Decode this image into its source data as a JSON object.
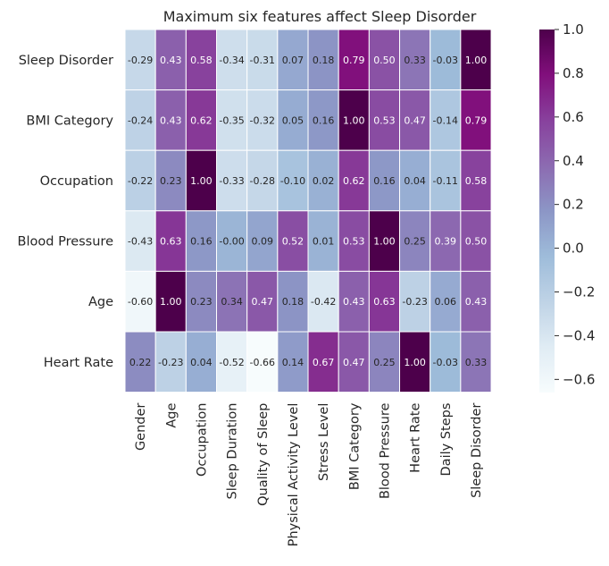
{
  "chart_data": {
    "type": "heatmap",
    "title": "Maximum six features affect Sleep Disorder",
    "xlabel": "",
    "ylabel": "",
    "x_categories": [
      "Gender",
      "Age",
      "Occupation",
      "Sleep Duration",
      "Quality of Sleep",
      "Physical Activity Level",
      "Stress Level",
      "BMI Category",
      "Blood Pressure",
      "Heart Rate",
      "Daily Steps",
      "Sleep Disorder"
    ],
    "y_categories": [
      "Sleep Disorder",
      "BMI Category",
      "Occupation",
      "Blood Pressure",
      "Age",
      "Heart Rate"
    ],
    "values": [
      [
        -0.29,
        0.43,
        0.58,
        -0.34,
        -0.31,
        0.07,
        0.18,
        0.79,
        0.5,
        0.33,
        -0.03,
        1.0
      ],
      [
        -0.24,
        0.43,
        0.62,
        -0.35,
        -0.32,
        0.05,
        0.16,
        1.0,
        0.53,
        0.47,
        -0.14,
        0.79
      ],
      [
        -0.22,
        0.23,
        1.0,
        -0.33,
        -0.28,
        -0.1,
        0.02,
        0.62,
        0.16,
        0.04,
        -0.11,
        0.58
      ],
      [
        -0.43,
        0.63,
        0.16,
        -0.0,
        0.09,
        0.52,
        0.01,
        0.53,
        1.0,
        0.25,
        0.39,
        0.5
      ],
      [
        -0.6,
        1.0,
        0.23,
        0.34,
        0.47,
        0.18,
        -0.42,
        0.43,
        0.63,
        -0.23,
        0.06,
        0.43
      ],
      [
        0.22,
        -0.23,
        0.04,
        -0.52,
        -0.66,
        0.14,
        0.67,
        0.47,
        0.25,
        1.0,
        -0.03,
        0.33
      ]
    ],
    "value_labels": [
      [
        "-0.29",
        "0.43",
        "0.58",
        "-0.34",
        "-0.31",
        "0.07",
        "0.18",
        "0.79",
        "0.50",
        "0.33",
        "-0.03",
        "1.00"
      ],
      [
        "-0.24",
        "0.43",
        "0.62",
        "-0.35",
        "-0.32",
        "0.05",
        "0.16",
        "1.00",
        "0.53",
        "0.47",
        "-0.14",
        "0.79"
      ],
      [
        "-0.22",
        "0.23",
        "1.00",
        "-0.33",
        "-0.28",
        "-0.10",
        "0.02",
        "0.62",
        "0.16",
        "0.04",
        "-0.11",
        "0.58"
      ],
      [
        "-0.43",
        "0.63",
        "0.16",
        "-0.00",
        "0.09",
        "0.52",
        "0.01",
        "0.53",
        "1.00",
        "0.25",
        "0.39",
        "0.50"
      ],
      [
        "-0.60",
        "1.00",
        "0.23",
        "0.34",
        "0.47",
        "0.18",
        "-0.42",
        "0.43",
        "0.63",
        "-0.23",
        "0.06",
        "0.43"
      ],
      [
        "0.22",
        "-0.23",
        "0.04",
        "-0.52",
        "-0.66",
        "0.14",
        "0.67",
        "0.47",
        "0.25",
        "1.00",
        "-0.03",
        "0.33"
      ]
    ],
    "colormap": "BuPu",
    "vmin": -0.66,
    "vmax": 1.0,
    "colorbar": {
      "ticks": [
        1.0,
        0.8,
        0.6,
        0.4,
        0.2,
        0.0,
        -0.2,
        -0.4,
        -0.6
      ],
      "tick_labels": [
        "1.0",
        "0.8",
        "0.6",
        "0.4",
        "0.2",
        "0.0",
        "−0.2",
        "−0.4",
        "−0.6"
      ],
      "placement": "right"
    },
    "grid": false
  }
}
